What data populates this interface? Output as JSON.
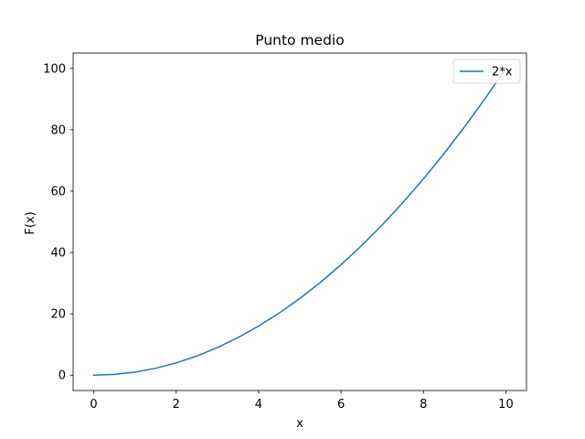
{
  "chart_data": {
    "type": "line",
    "title": "Punto medio",
    "xlabel": "x",
    "ylabel": "F(x)",
    "xlim": [
      -0.5,
      10.5
    ],
    "ylim": [
      -5,
      105
    ],
    "xticks": [
      0,
      2,
      4,
      6,
      8,
      10
    ],
    "yticks": [
      0,
      20,
      40,
      60,
      80,
      100
    ],
    "grid": false,
    "legend_position": "upper-right",
    "series": [
      {
        "name": "2*x",
        "color": "#1f77b4",
        "x": [
          0,
          0.5,
          1,
          1.5,
          2,
          2.5,
          3,
          3.5,
          4,
          4.5,
          5,
          5.5,
          6,
          6.5,
          7,
          7.5,
          8,
          8.5,
          9,
          9.5,
          10
        ],
        "y": [
          0,
          0.25,
          1,
          2.25,
          4,
          6.25,
          9,
          12.25,
          16,
          20.25,
          25,
          30.25,
          36,
          42.25,
          49,
          56.25,
          64,
          72.25,
          81,
          90.25,
          100
        ]
      }
    ]
  }
}
